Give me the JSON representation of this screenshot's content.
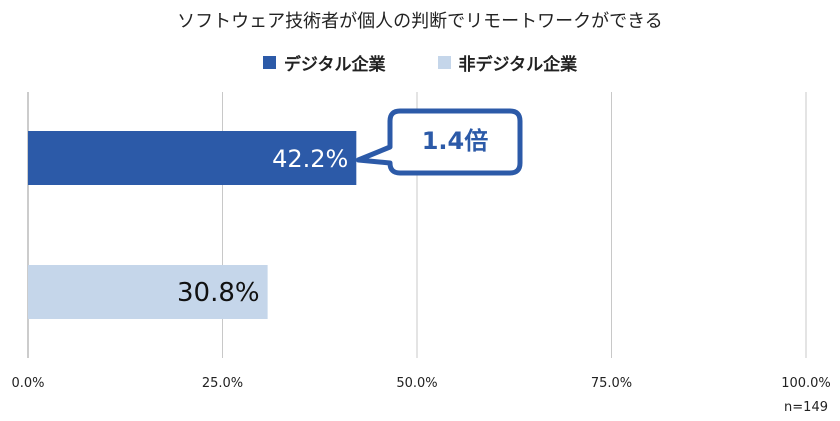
{
  "chart_data": {
    "type": "bar",
    "orientation": "horizontal",
    "title": "ソフトウェア技術者が個人の判断でリモートワークができる",
    "categories": [
      "デジタル企業",
      "非デジタル企業"
    ],
    "series": [
      {
        "name": "デジタル企業",
        "values": [
          42.2,
          null
        ]
      },
      {
        "name": "非デジタル企業",
        "values": [
          null,
          30.8
        ]
      }
    ],
    "value_labels": [
      "42.2%",
      "30.8%"
    ],
    "xlim": [
      0,
      100
    ],
    "xticks": [
      0,
      25,
      50,
      75,
      100
    ],
    "xtick_labels": [
      "0.0%",
      "25.0%",
      "50.0%",
      "75.0%",
      "100.0%"
    ],
    "grid": true,
    "legend_position": "top",
    "annotation": "1.4倍",
    "footnote": "n=149",
    "colors": {
      "digital": "#2c5aa8",
      "non_digital": "#c5d6ea",
      "callout_border": "#2c5aa8",
      "callout_text": "#2c5aa8",
      "grid": "#c8c8c8",
      "axis": "#999999"
    }
  }
}
